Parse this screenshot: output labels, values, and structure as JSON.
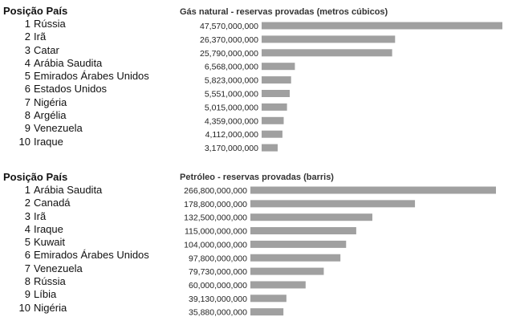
{
  "charts": [
    {
      "header_rank": "Posição País",
      "rows": [
        {
          "rank": "1",
          "name": "Rússia"
        },
        {
          "rank": "2",
          "name": "Irã"
        },
        {
          "rank": "3",
          "name": "Catar"
        },
        {
          "rank": "4",
          "name": "Arábia Saudita"
        },
        {
          "rank": "5",
          "name": "Emirados Árabes Unidos"
        },
        {
          "rank": "6",
          "name": "Estados Unidos"
        },
        {
          "rank": "7",
          "name": "Nigéria"
        },
        {
          "rank": "8",
          "name": "Argélia"
        },
        {
          "rank": "9",
          "name": "Venezuela"
        },
        {
          "rank": "10",
          "name": "Iraque"
        }
      ]
    },
    {
      "header_rank": "Posição País",
      "rows": [
        {
          "rank": "1",
          "name": "Arábia Saudita"
        },
        {
          "rank": "2",
          "name": "Canadá"
        },
        {
          "rank": "3",
          "name": "Irã"
        },
        {
          "rank": "4",
          "name": "Iraque"
        },
        {
          "rank": "5",
          "name": "Kuwait"
        },
        {
          "rank": "6",
          "name": "Emirados Árabes Unidos"
        },
        {
          "rank": "7",
          "name": "Venezuela"
        },
        {
          "rank": "8",
          "name": "Rússia"
        },
        {
          "rank": "9",
          "name": "Líbia"
        },
        {
          "rank": "10",
          "name": "Nigéria"
        }
      ]
    }
  ],
  "chart_data": [
    {
      "type": "bar",
      "orientation": "horizontal",
      "title": "Gás natural - reservas provadas (metros cúbicos)",
      "bar_color": "#a0a0a0",
      "value_labels": [
        "47,570,000,000",
        "26,370,000,000",
        "25,790,000,000",
        "6,568,000,000",
        "5,823,000,000",
        "5,551,000,000",
        "5,015,000,000",
        "4,359,000,000",
        "4,112,000,000",
        "3,170,000,000"
      ],
      "values": [
        47570000000,
        26370000000,
        25790000000,
        6568000000,
        5823000000,
        5551000000,
        5015000000,
        4359000000,
        4112000000,
        3170000000
      ]
    },
    {
      "type": "bar",
      "orientation": "horizontal",
      "title": "Petróleo - reservas provadas (barris)",
      "bar_color": "#a0a0a0",
      "value_labels": [
        "266,800,000,000",
        "178,800,000,000",
        "132,500,000,000",
        "115,000,000,000",
        "104,000,000,000",
        "97,800,000,000",
        "79,730,000,000",
        "60,000,000,000",
        "39,130,000,000",
        "35,880,000,000"
      ],
      "values": [
        266800000000,
        178800000000,
        132500000000,
        115000000000,
        104000000000,
        97800000000,
        79730000000,
        60000000000,
        39130000000,
        35880000000
      ]
    }
  ]
}
